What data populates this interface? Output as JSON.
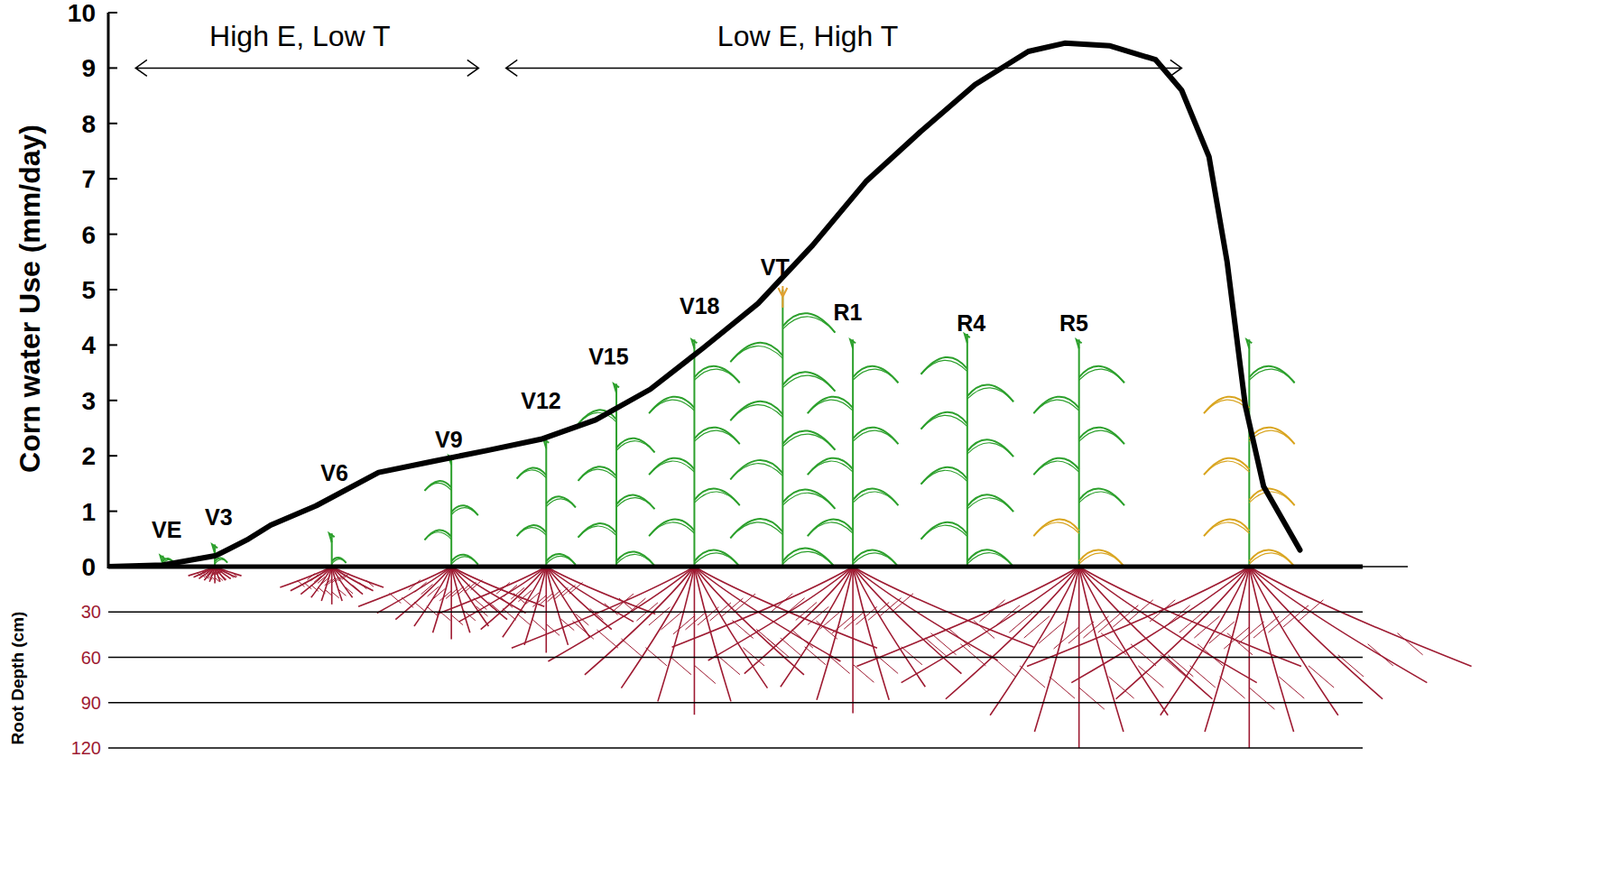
{
  "chart_data": {
    "type": "line",
    "ylabel": "Corn water Use (mm/day)",
    "xlim": [
      0,
      100
    ],
    "ylim": [
      0,
      10
    ],
    "yticks": [
      0,
      1,
      2,
      3,
      4,
      5,
      6,
      7,
      8,
      9,
      10
    ],
    "tick_labels": "y",
    "color": "#000000",
    "x": [
      0,
      4.2,
      8.3,
      10.8,
      12.5,
      16,
      20.8,
      25,
      29.2,
      33.3,
      37.5,
      41.7,
      45.8,
      50,
      54.2,
      58.3,
      62.5,
      66.7,
      70.8,
      73.6,
      77.1,
      80.6,
      82.6,
      84.7,
      86.1,
      87.5,
      88.9,
      91.7
    ],
    "values": [
      0,
      0.03,
      0.2,
      0.5,
      0.75,
      1.1,
      1.7,
      1.9,
      2.1,
      2.3,
      2.65,
      3.2,
      3.95,
      4.75,
      5.8,
      6.95,
      7.85,
      8.7,
      9.3,
      9.45,
      9.4,
      9.15,
      8.6,
      7.4,
      5.5,
      2.9,
      1.45,
      0.3
    ],
    "periods": [
      {
        "label": "High E, Low T",
        "x": [
          2.1,
          28.5
        ],
        "y": 9
      },
      {
        "label": "Low E, High T",
        "x": [
          30.6,
          82.6
        ],
        "y": 9
      }
    ],
    "stage_labels": [
      {
        "text": "VE",
        "x": 4.5,
        "y": 0.67
      },
      {
        "text": "V3",
        "x": 8.5,
        "y": 0.9
      },
      {
        "text": "V6",
        "x": 17.4,
        "y": 1.7
      },
      {
        "text": "V9",
        "x": 26.2,
        "y": 2.3
      },
      {
        "text": "V12",
        "x": 33.3,
        "y": 3.0
      },
      {
        "text": "V15",
        "x": 38.5,
        "y": 3.8
      },
      {
        "text": "V18",
        "x": 45.5,
        "y": 4.7
      },
      {
        "text": "VT",
        "x": 51.3,
        "y": 5.4
      },
      {
        "text": "R1",
        "x": 56.9,
        "y": 4.6
      },
      {
        "text": "R4",
        "x": 66.4,
        "y": 4.4
      },
      {
        "text": "R5",
        "x": 74.3,
        "y": 4.4
      }
    ],
    "plants": [
      {
        "x": 4.2,
        "height": 0.2,
        "root_depth": null,
        "yellow_leaves": 0,
        "tassel": false
      },
      {
        "x": 8.2,
        "height": 0.4,
        "root_depth": 11,
        "yellow_leaves": 0,
        "tassel": false
      },
      {
        "x": 17.2,
        "height": 0.6,
        "root_depth": 25,
        "yellow_leaves": 0,
        "tassel": false
      },
      {
        "x": 26.4,
        "height": 2.0,
        "root_depth": 48,
        "yellow_leaves": 0,
        "tassel": false
      },
      {
        "x": 33.7,
        "height": 2.3,
        "root_depth": 57,
        "yellow_leaves": 0,
        "tassel": false
      },
      {
        "x": 39.1,
        "height": 3.3,
        "root_depth": null,
        "yellow_leaves": 0,
        "tassel": false
      },
      {
        "x": 45.1,
        "height": 4.1,
        "root_depth": 98,
        "yellow_leaves": 0,
        "tassel": false
      },
      {
        "x": 51.9,
        "height": 5.0,
        "root_depth": null,
        "yellow_leaves": 0,
        "tassel": true
      },
      {
        "x": 57.3,
        "height": 4.1,
        "root_depth": 97,
        "yellow_leaves": 0,
        "tassel": false
      },
      {
        "x": 66.1,
        "height": 4.2,
        "root_depth": null,
        "yellow_leaves": 0,
        "tassel": false
      },
      {
        "x": 74.7,
        "height": 4.1,
        "root_depth": 120,
        "yellow_leaves": 2,
        "tassel": false
      },
      {
        "x": 87.8,
        "height": 4.1,
        "root_depth": 120,
        "yellow_leaves": 6,
        "tassel": false
      }
    ],
    "root_depth": {
      "label": "Root Depth (cm)",
      "lim": [
        0,
        120
      ],
      "ticks": [
        30,
        60,
        90,
        120
      ],
      "color": "#9e1b32"
    }
  }
}
